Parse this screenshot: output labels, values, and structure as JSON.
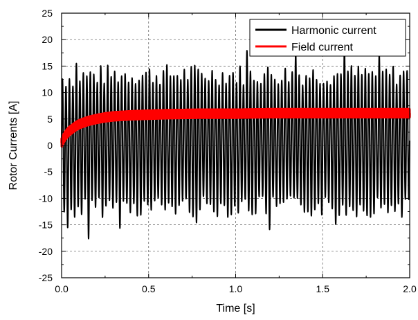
{
  "chart_data": {
    "type": "line",
    "xlabel": "Time [s]",
    "ylabel": "Rotor Currents [A]",
    "xlim": [
      0.0,
      2.0
    ],
    "ylim": [
      -25,
      25
    ],
    "x_ticks": [
      "0.0",
      "0.5",
      "1.0",
      "1.5",
      "2.0"
    ],
    "y_ticks": [
      "25",
      "20",
      "15",
      "10",
      "5",
      "0",
      "-5",
      "-10",
      "-15",
      "-20",
      "-25"
    ],
    "grid": true,
    "legend_position": "top-right",
    "series": [
      {
        "name": "Harmonic current",
        "color": "#000000",
        "description_of_shape": "oscillation",
        "oscillation_frequency_hz": 50,
        "typical_peak": 14.5,
        "typical_trough": -14.5,
        "notable_peaks": [
          {
            "x": 0.03,
            "y": 15.8
          },
          {
            "x": 0.33,
            "y": 16.5
          },
          {
            "x": 1.19,
            "y": 16.8
          },
          {
            "x": 1.62,
            "y": 17.5
          },
          {
            "x": 1.82,
            "y": 16.2
          }
        ],
        "notable_troughs": [
          {
            "x": 0.15,
            "y": -18.3
          },
          {
            "x": 0.08,
            "y": -15.0
          },
          {
            "x": 0.77,
            "y": -15.5
          },
          {
            "x": 1.06,
            "y": -17.0
          },
          {
            "x": 1.34,
            "y": -16.5
          },
          {
            "x": 1.57,
            "y": -15.8
          }
        ]
      },
      {
        "name": "Field current",
        "color": "#ff0000",
        "points": [
          [
            0.0,
            0.5
          ],
          [
            0.01,
            1.2
          ],
          [
            0.02,
            1.8
          ],
          [
            0.04,
            2.6
          ],
          [
            0.06,
            3.1
          ],
          [
            0.08,
            3.6
          ],
          [
            0.1,
            4.0
          ],
          [
            0.15,
            4.6
          ],
          [
            0.2,
            5.0
          ],
          [
            0.25,
            5.3
          ],
          [
            0.3,
            5.5
          ],
          [
            0.4,
            5.7
          ],
          [
            0.5,
            5.8
          ],
          [
            0.6,
            5.9
          ],
          [
            0.8,
            6.0
          ],
          [
            1.0,
            6.0
          ],
          [
            1.2,
            6.1
          ],
          [
            1.4,
            6.1
          ],
          [
            1.6,
            6.1
          ],
          [
            1.8,
            6.1
          ],
          [
            2.0,
            6.1
          ]
        ],
        "ripple_amplitude": 0.8
      }
    ]
  },
  "legend": {
    "items": [
      "Harmonic current",
      "Field current"
    ]
  }
}
